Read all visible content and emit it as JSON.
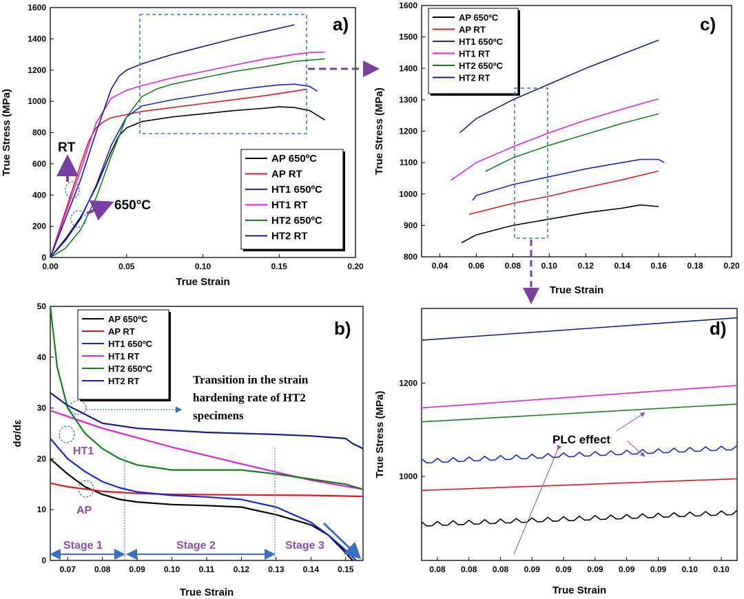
{
  "series_colors": {
    "AP 650C": "#000000",
    "AP RT": "#e8141c",
    "HT1 650C": "#1526d6",
    "HT1 RT": "#e61ee0",
    "HT2 650C": "#12811a",
    "HT2 RT": "#1a1a8c"
  },
  "chart_data": [
    {
      "id": "a",
      "panel_label": "a)",
      "type": "line",
      "xlabel": "True Strain",
      "ylabel": "True Stress (MPa)",
      "xlim": [
        0,
        0.2
      ],
      "ylim": [
        0,
        1600
      ],
      "xticks": [
        0.0,
        0.05,
        0.1,
        0.15,
        0.2
      ],
      "xtick_labels": [
        "0.00",
        "0.05",
        "0.10",
        "0.15",
        "0.20"
      ],
      "yticks": [
        0,
        200,
        400,
        600,
        800,
        1000,
        1200,
        1400,
        1600
      ],
      "ytick_labels": [
        "0",
        "200",
        "400",
        "600",
        "800",
        "1000",
        "1200",
        "1400",
        "1600"
      ],
      "legend": [
        "AP 650ºC",
        "AP RT",
        "HT1 650ºC",
        "HT1 RT",
        "HT2 650ºC",
        "HT2 RT"
      ],
      "legend_position": "lower-right",
      "annotations": [
        "RT",
        "650°C"
      ],
      "series": [
        {
          "name": "AP 650ºC",
          "color_key": "AP 650C",
          "x": [
            0,
            0.01,
            0.02,
            0.03,
            0.04,
            0.045,
            0.05,
            0.06,
            0.08,
            0.1,
            0.12,
            0.14,
            0.15,
            0.16,
            0.17,
            0.18
          ],
          "y": [
            0,
            120,
            260,
            450,
            680,
            780,
            830,
            870,
            900,
            920,
            940,
            955,
            965,
            960,
            940,
            880
          ]
        },
        {
          "name": "AP RT",
          "color_key": "AP RT",
          "x": [
            0,
            0.01,
            0.02,
            0.025,
            0.03,
            0.035,
            0.04,
            0.06,
            0.08,
            0.1,
            0.12,
            0.14,
            0.16,
            0.168
          ],
          "y": [
            0,
            300,
            600,
            740,
            830,
            870,
            895,
            935,
            960,
            985,
            1010,
            1035,
            1065,
            1078
          ]
        },
        {
          "name": "HT1 650ºC",
          "color_key": "HT1 650C",
          "x": [
            0,
            0.01,
            0.02,
            0.03,
            0.04,
            0.05,
            0.06,
            0.08,
            0.1,
            0.12,
            0.14,
            0.15,
            0.16,
            0.17,
            0.175
          ],
          "y": [
            0,
            110,
            250,
            460,
            720,
            900,
            970,
            1010,
            1040,
            1070,
            1095,
            1105,
            1110,
            1095,
            1065
          ]
        },
        {
          "name": "HT1 RT",
          "color_key": "HT1 RT",
          "x": [
            0,
            0.01,
            0.02,
            0.03,
            0.04,
            0.05,
            0.06,
            0.08,
            0.1,
            0.12,
            0.14,
            0.16,
            0.17,
            0.18
          ],
          "y": [
            0,
            280,
            560,
            860,
            1020,
            1070,
            1100,
            1150,
            1190,
            1230,
            1270,
            1300,
            1312,
            1315
          ]
        },
        {
          "name": "HT2 650ºC",
          "color_key": "HT2 650C",
          "x": [
            0,
            0.01,
            0.02,
            0.03,
            0.04,
            0.05,
            0.06,
            0.07,
            0.08,
            0.1,
            0.12,
            0.14,
            0.16,
            0.18
          ],
          "y": [
            0,
            60,
            180,
            380,
            650,
            900,
            1030,
            1080,
            1110,
            1150,
            1190,
            1220,
            1255,
            1272
          ]
        },
        {
          "name": "HT2 RT",
          "color_key": "HT2 RT",
          "x": [
            0,
            0.01,
            0.02,
            0.03,
            0.04,
            0.045,
            0.05,
            0.06,
            0.08,
            0.1,
            0.12,
            0.14,
            0.16
          ],
          "y": [
            0,
            250,
            500,
            800,
            1080,
            1160,
            1200,
            1240,
            1300,
            1350,
            1400,
            1445,
            1490
          ]
        }
      ]
    },
    {
      "id": "b",
      "panel_label": "b)",
      "type": "line",
      "xlabel": "True Strain",
      "ylabel": "dσ/dε",
      "xlim": [
        0.065,
        0.155
      ],
      "ylim": [
        0,
        50
      ],
      "xticks": [
        0.07,
        0.08,
        0.09,
        0.1,
        0.11,
        0.12,
        0.13,
        0.14,
        0.15
      ],
      "xtick_labels": [
        "0.07",
        "0.08",
        "0.09",
        "0.10",
        "0.11",
        "0.12",
        "0.13",
        "0.14",
        "0.15"
      ],
      "yticks": [
        0,
        10,
        20,
        30,
        40,
        50
      ],
      "ytick_labels": [
        "0",
        "10",
        "20",
        "30",
        "40",
        "50"
      ],
      "legend": [
        "AP 650ºC",
        "AP RT",
        "HT1 650ºC",
        "HT1 RT",
        "HT2 650ºC",
        "HT2 RT"
      ],
      "legend_position": "top-left",
      "annotations": [
        "Transition in the strain hardening rate of HT2 specimens",
        "HT1",
        "AP",
        "Stage 1",
        "Stage 2",
        "Stage 3"
      ],
      "series": [
        {
          "name": "AP 650ºC",
          "color_key": "AP 650C",
          "x": [
            0.065,
            0.07,
            0.075,
            0.08,
            0.085,
            0.09,
            0.1,
            0.11,
            0.12,
            0.13,
            0.14,
            0.145,
            0.15,
            0.152
          ],
          "y": [
            20,
            17,
            14.5,
            13,
            12,
            11.5,
            11,
            10.8,
            10.5,
            9,
            7,
            5,
            1.5,
            0
          ]
        },
        {
          "name": "AP RT",
          "color_key": "AP RT",
          "x": [
            0.065,
            0.07,
            0.08,
            0.09,
            0.1,
            0.12,
            0.14,
            0.155
          ],
          "y": [
            15.2,
            14.5,
            13.6,
            13.2,
            13,
            12.9,
            12.8,
            12.6
          ]
        },
        {
          "name": "HT1 650ºC",
          "color_key": "HT1 650C",
          "x": [
            0.065,
            0.07,
            0.075,
            0.08,
            0.085,
            0.09,
            0.1,
            0.11,
            0.12,
            0.13,
            0.14,
            0.145,
            0.15,
            0.153
          ],
          "y": [
            24,
            20,
            17.5,
            15.5,
            14.3,
            13.5,
            12.8,
            12.5,
            12,
            10.5,
            7.5,
            5,
            2,
            0
          ]
        },
        {
          "name": "HT1 RT",
          "color_key": "HT1 RT",
          "x": [
            0.065,
            0.08,
            0.1,
            0.12,
            0.14,
            0.155
          ],
          "y": [
            29.5,
            26,
            22.3,
            19,
            15.8,
            14
          ]
        },
        {
          "name": "HT2 650ºC",
          "color_key": "HT2 650C",
          "x": [
            0.065,
            0.067,
            0.07,
            0.075,
            0.08,
            0.085,
            0.09,
            0.1,
            0.11,
            0.12,
            0.13,
            0.14,
            0.15,
            0.155
          ],
          "y": [
            50,
            38,
            30,
            25,
            22,
            20,
            18.8,
            17.8,
            17.8,
            17.8,
            17,
            16,
            15,
            14
          ]
        },
        {
          "name": "HT2 RT",
          "color_key": "HT2 RT",
          "x": [
            0.065,
            0.07,
            0.08,
            0.09,
            0.1,
            0.11,
            0.12,
            0.13,
            0.14,
            0.15,
            0.152,
            0.155
          ],
          "y": [
            33,
            30.5,
            27,
            26,
            25.6,
            25.2,
            25,
            24.8,
            24.5,
            24,
            23,
            22
          ]
        }
      ]
    },
    {
      "id": "c",
      "panel_label": "c)",
      "type": "line",
      "xlabel": "True Strain",
      "ylabel": "True Stress (MPa)",
      "xlim": [
        0.03,
        0.2
      ],
      "ylim": [
        800,
        1600
      ],
      "xticks": [
        0.04,
        0.06,
        0.08,
        0.1,
        0.12,
        0.14,
        0.16,
        0.18,
        0.2
      ],
      "xtick_labels": [
        "0.04",
        "0.06",
        "0.08",
        "0.10",
        "0.12",
        "0.14",
        "0.16",
        "0.18",
        "0.20"
      ],
      "yticks": [
        800,
        900,
        1000,
        1100,
        1200,
        1300,
        1400,
        1500,
        1600
      ],
      "ytick_labels": [
        "800",
        "900",
        "1000",
        "1100",
        "1200",
        "1300",
        "1400",
        "1500",
        "1600"
      ],
      "legend": [
        "AP 650ºC",
        "AP RT",
        "HT1 650ºC",
        "HT1 RT",
        "HT2 650ºC",
        "HT2 RT"
      ],
      "legend_position": "top-left",
      "series": [
        {
          "name": "AP 650ºC",
          "color_key": "AP 650C",
          "x": [
            0.052,
            0.06,
            0.08,
            0.1,
            0.12,
            0.14,
            0.15,
            0.16
          ],
          "y": [
            845,
            870,
            900,
            920,
            940,
            955,
            965,
            960
          ]
        },
        {
          "name": "AP RT",
          "color_key": "AP RT",
          "x": [
            0.056,
            0.08,
            0.1,
            0.12,
            0.14,
            0.16
          ],
          "y": [
            935,
            970,
            993,
            1020,
            1045,
            1073
          ]
        },
        {
          "name": "HT1 650ºC",
          "color_key": "HT1 650C",
          "x": [
            0.058,
            0.06,
            0.08,
            0.1,
            0.12,
            0.14,
            0.15,
            0.16,
            0.163
          ],
          "y": [
            980,
            995,
            1030,
            1055,
            1080,
            1100,
            1110,
            1110,
            1100
          ]
        },
        {
          "name": "HT1 RT",
          "color_key": "HT1 RT",
          "x": [
            0.046,
            0.06,
            0.08,
            0.1,
            0.12,
            0.14,
            0.16
          ],
          "y": [
            1043,
            1100,
            1150,
            1195,
            1235,
            1270,
            1303
          ]
        },
        {
          "name": "HT2 650ºC",
          "color_key": "HT2 650C",
          "x": [
            0.065,
            0.08,
            0.1,
            0.12,
            0.14,
            0.16
          ],
          "y": [
            1072,
            1115,
            1155,
            1190,
            1225,
            1255
          ]
        },
        {
          "name": "HT2 RT",
          "color_key": "HT2 RT",
          "x": [
            0.051,
            0.06,
            0.08,
            0.1,
            0.12,
            0.14,
            0.16
          ],
          "y": [
            1195,
            1240,
            1300,
            1350,
            1400,
            1445,
            1490
          ]
        }
      ]
    },
    {
      "id": "d",
      "panel_label": "d)",
      "type": "line",
      "xlabel": "True Strain",
      "ylabel": "True Stress (MPa)",
      "xlim": [
        0.079,
        0.099
      ],
      "ylim": [
        820,
        1360
      ],
      "xticks": [
        0.08,
        0.082,
        0.084,
        0.086,
        0.088,
        0.09,
        0.092,
        0.094,
        0.096,
        0.098
      ],
      "xtick_labels": [
        "0.08",
        "0.08",
        "0.08",
        "0.09",
        "0.09",
        "0.09",
        "0.09",
        "0.09",
        "0.10",
        "0.10"
      ],
      "yticks": [
        1000,
        1200
      ],
      "ytick_labels": [
        "1000",
        "1200"
      ],
      "annotations": [
        "PLC effect"
      ],
      "series": [
        {
          "name": "AP 650ºC",
          "color_key": "AP 650C",
          "x": [
            0.079,
            0.099
          ],
          "y": [
            898,
            923
          ],
          "serrated": true
        },
        {
          "name": "AP RT",
          "color_key": "AP RT",
          "x": [
            0.079,
            0.099
          ],
          "y": [
            970,
            995
          ]
        },
        {
          "name": "HT1 650ºC",
          "color_key": "HT1 650C",
          "x": [
            0.079,
            0.099
          ],
          "y": [
            1033,
            1062
          ],
          "serrated": true
        },
        {
          "name": "HT1 RT",
          "color_key": "HT1 RT",
          "x": [
            0.079,
            0.099
          ],
          "y": [
            1147,
            1195
          ]
        },
        {
          "name": "HT2 650ºC",
          "color_key": "HT2 650C",
          "x": [
            0.079,
            0.099
          ],
          "y": [
            1117,
            1155
          ]
        },
        {
          "name": "HT2 RT",
          "color_key": "HT2 RT",
          "x": [
            0.079,
            0.099
          ],
          "y": [
            1292,
            1340
          ]
        }
      ]
    }
  ]
}
